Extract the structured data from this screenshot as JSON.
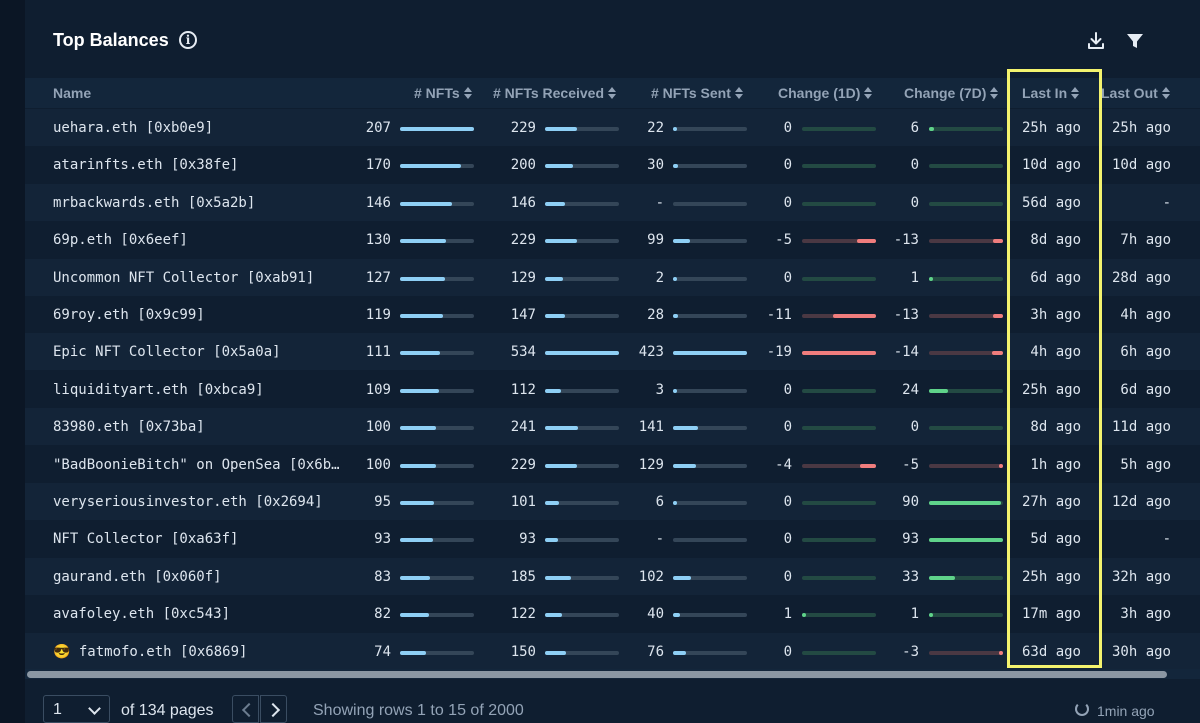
{
  "title": "Top Balances",
  "columns": [
    "Name",
    "# NFTs",
    "# NFTs Received",
    "# NFTs Sent",
    "Change (1D)",
    "Change (7D)",
    "Last In",
    "Last Out"
  ],
  "rows": [
    {
      "name": "uehara.eth [0xb0e9]",
      "nfts": "207",
      "received": "229",
      "sent": "22",
      "d1": "0",
      "d7": "6",
      "last_in": "25h ago",
      "last_out": "25h ago"
    },
    {
      "name": "atarinfts.eth [0x38fe]",
      "nfts": "170",
      "received": "200",
      "sent": "30",
      "d1": "0",
      "d7": "0",
      "last_in": "10d ago",
      "last_out": "10d ago"
    },
    {
      "name": "mrbackwards.eth [0x5a2b]",
      "nfts": "146",
      "received": "146",
      "sent": "-",
      "d1": "0",
      "d7": "0",
      "last_in": "56d ago",
      "last_out": "-"
    },
    {
      "name": "69p.eth [0x6eef]",
      "nfts": "130",
      "received": "229",
      "sent": "99",
      "d1": "-5",
      "d7": "-13",
      "last_in": "8d ago",
      "last_out": "7h ago"
    },
    {
      "name": "Uncommon NFT Collector [0xab91]",
      "nfts": "127",
      "received": "129",
      "sent": "2",
      "d1": "0",
      "d7": "1",
      "last_in": "6d ago",
      "last_out": "28d ago"
    },
    {
      "name": "69roy.eth [0x9c99]",
      "nfts": "119",
      "received": "147",
      "sent": "28",
      "d1": "-11",
      "d7": "-13",
      "last_in": "3h ago",
      "last_out": "4h ago"
    },
    {
      "name": "Epic NFT Collector [0x5a0a]",
      "nfts": "111",
      "received": "534",
      "sent": "423",
      "d1": "-19",
      "d7": "-14",
      "last_in": "4h ago",
      "last_out": "6h ago"
    },
    {
      "name": "liquidityart.eth [0xbca9]",
      "nfts": "109",
      "received": "112",
      "sent": "3",
      "d1": "0",
      "d7": "24",
      "last_in": "25h ago",
      "last_out": "6d ago"
    },
    {
      "name": "83980.eth [0x73ba]",
      "nfts": "100",
      "received": "241",
      "sent": "141",
      "d1": "0",
      "d7": "0",
      "last_in": "8d ago",
      "last_out": "11d ago"
    },
    {
      "name": "\"BadBoonieBitch\" on OpenSea [0x6b…",
      "nfts": "100",
      "received": "229",
      "sent": "129",
      "d1": "-4",
      "d7": "-5",
      "last_in": "1h ago",
      "last_out": "5h ago"
    },
    {
      "name": "veryseriousinvestor.eth [0x2694]",
      "nfts": "95",
      "received": "101",
      "sent": "6",
      "d1": "0",
      "d7": "90",
      "last_in": "27h ago",
      "last_out": "12d ago"
    },
    {
      "name": "NFT Collector [0xa63f]",
      "nfts": "93",
      "received": "93",
      "sent": "-",
      "d1": "0",
      "d7": "93",
      "last_in": "5d ago",
      "last_out": "-"
    },
    {
      "name": "gaurand.eth [0x060f]",
      "nfts": "83",
      "received": "185",
      "sent": "102",
      "d1": "0",
      "d7": "33",
      "last_in": "25h ago",
      "last_out": "32h ago"
    },
    {
      "name": "avafoley.eth [0xc543]",
      "nfts": "82",
      "received": "122",
      "sent": "40",
      "d1": "1",
      "d7": "1",
      "last_in": "17m ago",
      "last_out": "3h ago"
    },
    {
      "name": "😎 fatmofo.eth [0x6869]",
      "nfts": "74",
      "received": "150",
      "sent": "76",
      "d1": "0",
      "d7": "-3",
      "last_in": "63d ago",
      "last_out": "30h ago"
    }
  ],
  "footer": {
    "page_value": "1",
    "of_pages": "of 134 pages",
    "showing": "Showing rows 1 to 15 of 2000",
    "updated": "1min ago"
  },
  "colors": {
    "bar_blue": "#8ecff5",
    "bar_green": "#5fd38a",
    "bar_red": "#f07d7d",
    "highlight": "#f4f36e"
  },
  "icons": [
    "info-icon",
    "download-icon",
    "filter-icon",
    "sort-icon",
    "chevron-down-icon",
    "chevron-left-icon",
    "chevron-right-icon",
    "refresh-icon"
  ]
}
